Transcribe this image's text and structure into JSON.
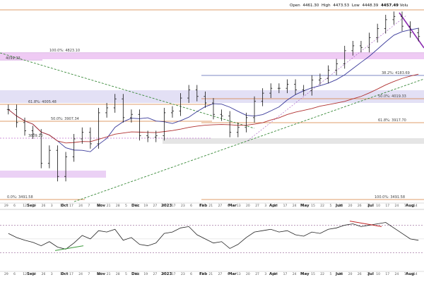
{
  "header": {
    "open_label": "Open",
    "open": "4461.30",
    "high_label": "High",
    "high": "4473.53",
    "low_label": "Low",
    "low": "4448.39",
    "close": "4457.49",
    "volume_label": "Volu"
  },
  "chart_data": [
    {
      "type": "ohlc",
      "panel": "price",
      "title": "",
      "dates": [
        "Aug 29",
        "Sep 5",
        "Sep 12",
        "Sep 19",
        "Sep 26",
        "Oct 3",
        "Oct 10",
        "Oct 17",
        "Oct 24",
        "Oct 31",
        "Nov 7",
        "Nov 14",
        "Nov 21",
        "Nov 28",
        "Dec 5",
        "Dec 12",
        "Dec 19",
        "Dec 27",
        "Jan 3",
        "Jan 9",
        "Jan 17",
        "Jan 23",
        "Jan 30",
        "Feb 6",
        "Feb 13",
        "Feb 21",
        "Feb 27",
        "Mar 6",
        "Mar 13",
        "Mar 20",
        "Mar 27",
        "Apr 3",
        "Apr 10",
        "Apr 17",
        "Apr 24",
        "May 1",
        "May 8",
        "May 15",
        "May 22",
        "May 30",
        "Jun 5",
        "Jun 12",
        "Jun 20",
        "Jun 26",
        "Jul 3",
        "Jul 10",
        "Jul 17",
        "Jul 24",
        "Jul 31",
        "Aug 7",
        "Aug 14"
      ],
      "close": [
        4010,
        3930,
        3880,
        3860,
        3680,
        3760,
        3600,
        3720,
        3830,
        3870,
        3800,
        3990,
        4020,
        4075,
        3960,
        3980,
        3850,
        3840,
        3850,
        3990,
        4000,
        4080,
        4130,
        4090,
        4050,
        3980,
        3970,
        3870,
        3900,
        3960,
        4060,
        4110,
        4140,
        4140,
        4165,
        4130,
        4125,
        4190,
        4200,
        4250,
        4290,
        4370,
        4400,
        4390,
        4450,
        4505,
        4560,
        4580,
        4520,
        4480,
        4457
      ],
      "ylim": [
        3450,
        4620
      ],
      "horizontal_levels": [
        {
          "label": "100.0%: 4823.10"
        },
        {
          "label": "4099.33"
        },
        {
          "label": "61.8%: 4005.48"
        },
        {
          "label": "50.0%: 3907.34"
        },
        {
          "label": "3809.20"
        },
        {
          "label": "0.0%: 3491.58"
        },
        {
          "label": "38.2%: 4183.69"
        },
        {
          "label": "50.0%: 4019.33"
        },
        {
          "label": "61.8%: 3917.70"
        },
        {
          "label": "100.0%: 3491.58"
        }
      ],
      "x_axis_labels": [
        "Sep",
        "Oct",
        "Nov",
        "Dec",
        "2023",
        "Feb",
        "Mar",
        "Apr",
        "May",
        "Jun",
        "Jul",
        "Aug"
      ],
      "x_tick_labels": [
        "29",
        "6",
        "12",
        "19",
        "26",
        "3",
        "10",
        "17",
        "24",
        "7",
        "14",
        "21",
        "28",
        "5",
        "12",
        "19",
        "27",
        "9",
        "17",
        "23",
        "6",
        "13",
        "21",
        "27",
        "6",
        "13",
        "20",
        "27",
        "3",
        "10",
        "17",
        "24",
        "8",
        "15",
        "22",
        "5",
        "12",
        "20",
        "26",
        "3",
        "10",
        "17",
        "24",
        "7",
        "14"
      ],
      "indicators": [
        "50-day MA",
        "200-day MA",
        "trendlines",
        "Fibonacci retracements"
      ]
    },
    {
      "type": "line",
      "panel": "oscillator",
      "title": "",
      "series": [
        {
          "values": [
            58,
            52,
            48,
            45,
            40,
            46,
            38,
            35,
            44,
            55,
            50,
            62,
            60,
            64,
            48,
            52,
            42,
            40,
            44,
            58,
            60,
            66,
            68,
            56,
            50,
            44,
            46,
            36,
            42,
            52,
            60,
            62,
            64,
            60,
            62,
            56,
            54,
            60,
            58,
            64,
            66,
            70,
            72,
            68,
            70,
            72,
            74,
            66,
            58,
            50,
            48
          ]
        }
      ],
      "ylim": [
        20,
        90
      ]
    }
  ]
}
